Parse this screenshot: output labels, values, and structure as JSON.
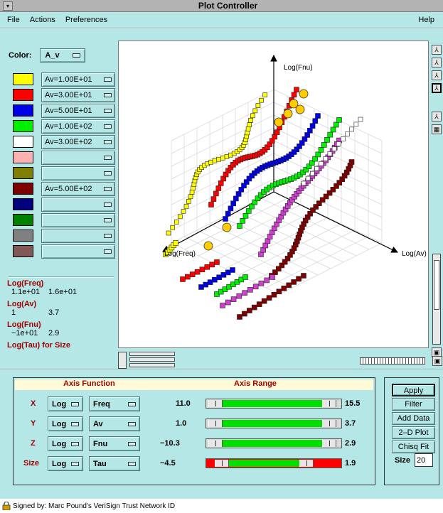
{
  "window": {
    "title": "Plot Controller"
  },
  "menu": {
    "file": "File",
    "actions": "Actions",
    "preferences": "Preferences",
    "help": "Help"
  },
  "colors_panel": {
    "label": "Color:",
    "selector": "A_v",
    "rows": [
      {
        "color": "#ffff00",
        "value": "Av=1.00E+01"
      },
      {
        "color": "#ff0000",
        "value": "Av=3.00E+01"
      },
      {
        "color": "#0000e6",
        "value": "Av=5.00E+01"
      },
      {
        "color": "#00ee00",
        "value": "Av=1.00E+02"
      },
      {
        "color": "#ffffff",
        "value": "Av=3.00E+02"
      },
      {
        "color": "#ffb0b0",
        "value": ""
      },
      {
        "color": "#7f7f00",
        "value": ""
      },
      {
        "color": "#7f0000",
        "value": "Av=5.00E+02"
      },
      {
        "color": "#00007f",
        "value": ""
      },
      {
        "color": "#008000",
        "value": ""
      },
      {
        "color": "#808080",
        "value": ""
      },
      {
        "color": "#805858",
        "value": ""
      }
    ]
  },
  "ranges": {
    "freq_label": "Log(Freq)",
    "freq_min": "1.1e+01",
    "freq_max": "1.6e+01",
    "av_label": "Log(Av)",
    "av_min": "1",
    "av_max": "3.7",
    "fnu_label": "Log(Fnu)",
    "fnu_min": "−1e+01",
    "fnu_max": "2.9",
    "tau_label": "Log(Tau) for Size"
  },
  "plot": {
    "y_axis_label": "Log(Fnu)",
    "x_axis_label": "Log(Av)",
    "z_axis_label": "Log(Freq)"
  },
  "axis_panel": {
    "function_header": "Axis Function",
    "range_header": "Axis Range",
    "rows": [
      {
        "label": "X",
        "scale": "Log",
        "func": "Freq",
        "min": "11.0",
        "max": "15.5",
        "fill_from": 0.12,
        "fill_to": 0.86,
        "red": false
      },
      {
        "label": "Y",
        "scale": "Log",
        "func": "Av",
        "min": "1.0",
        "max": "3.7",
        "fill_from": 0.12,
        "fill_to": 0.86,
        "red": false
      },
      {
        "label": "Z",
        "scale": "Log",
        "func": "Fnu",
        "min": "−10.3",
        "max": "2.9",
        "fill_from": 0.12,
        "fill_to": 0.86,
        "red": false
      },
      {
        "label": "Size",
        "scale": "Log",
        "func": "Tau",
        "min": "−4.5",
        "max": "1.9",
        "fill_from": 0.17,
        "fill_to": 0.69,
        "red": true
      }
    ]
  },
  "actions": {
    "apply": "Apply",
    "filter": "Filter",
    "add_data": "Add Data",
    "plot2d": "2–D Plot",
    "chisq": "Chisq Fit",
    "size_label": "Size",
    "size_value": "20"
  },
  "status": {
    "signed": "Signed by: Marc Pound's VeriSign Trust Network ID"
  }
}
